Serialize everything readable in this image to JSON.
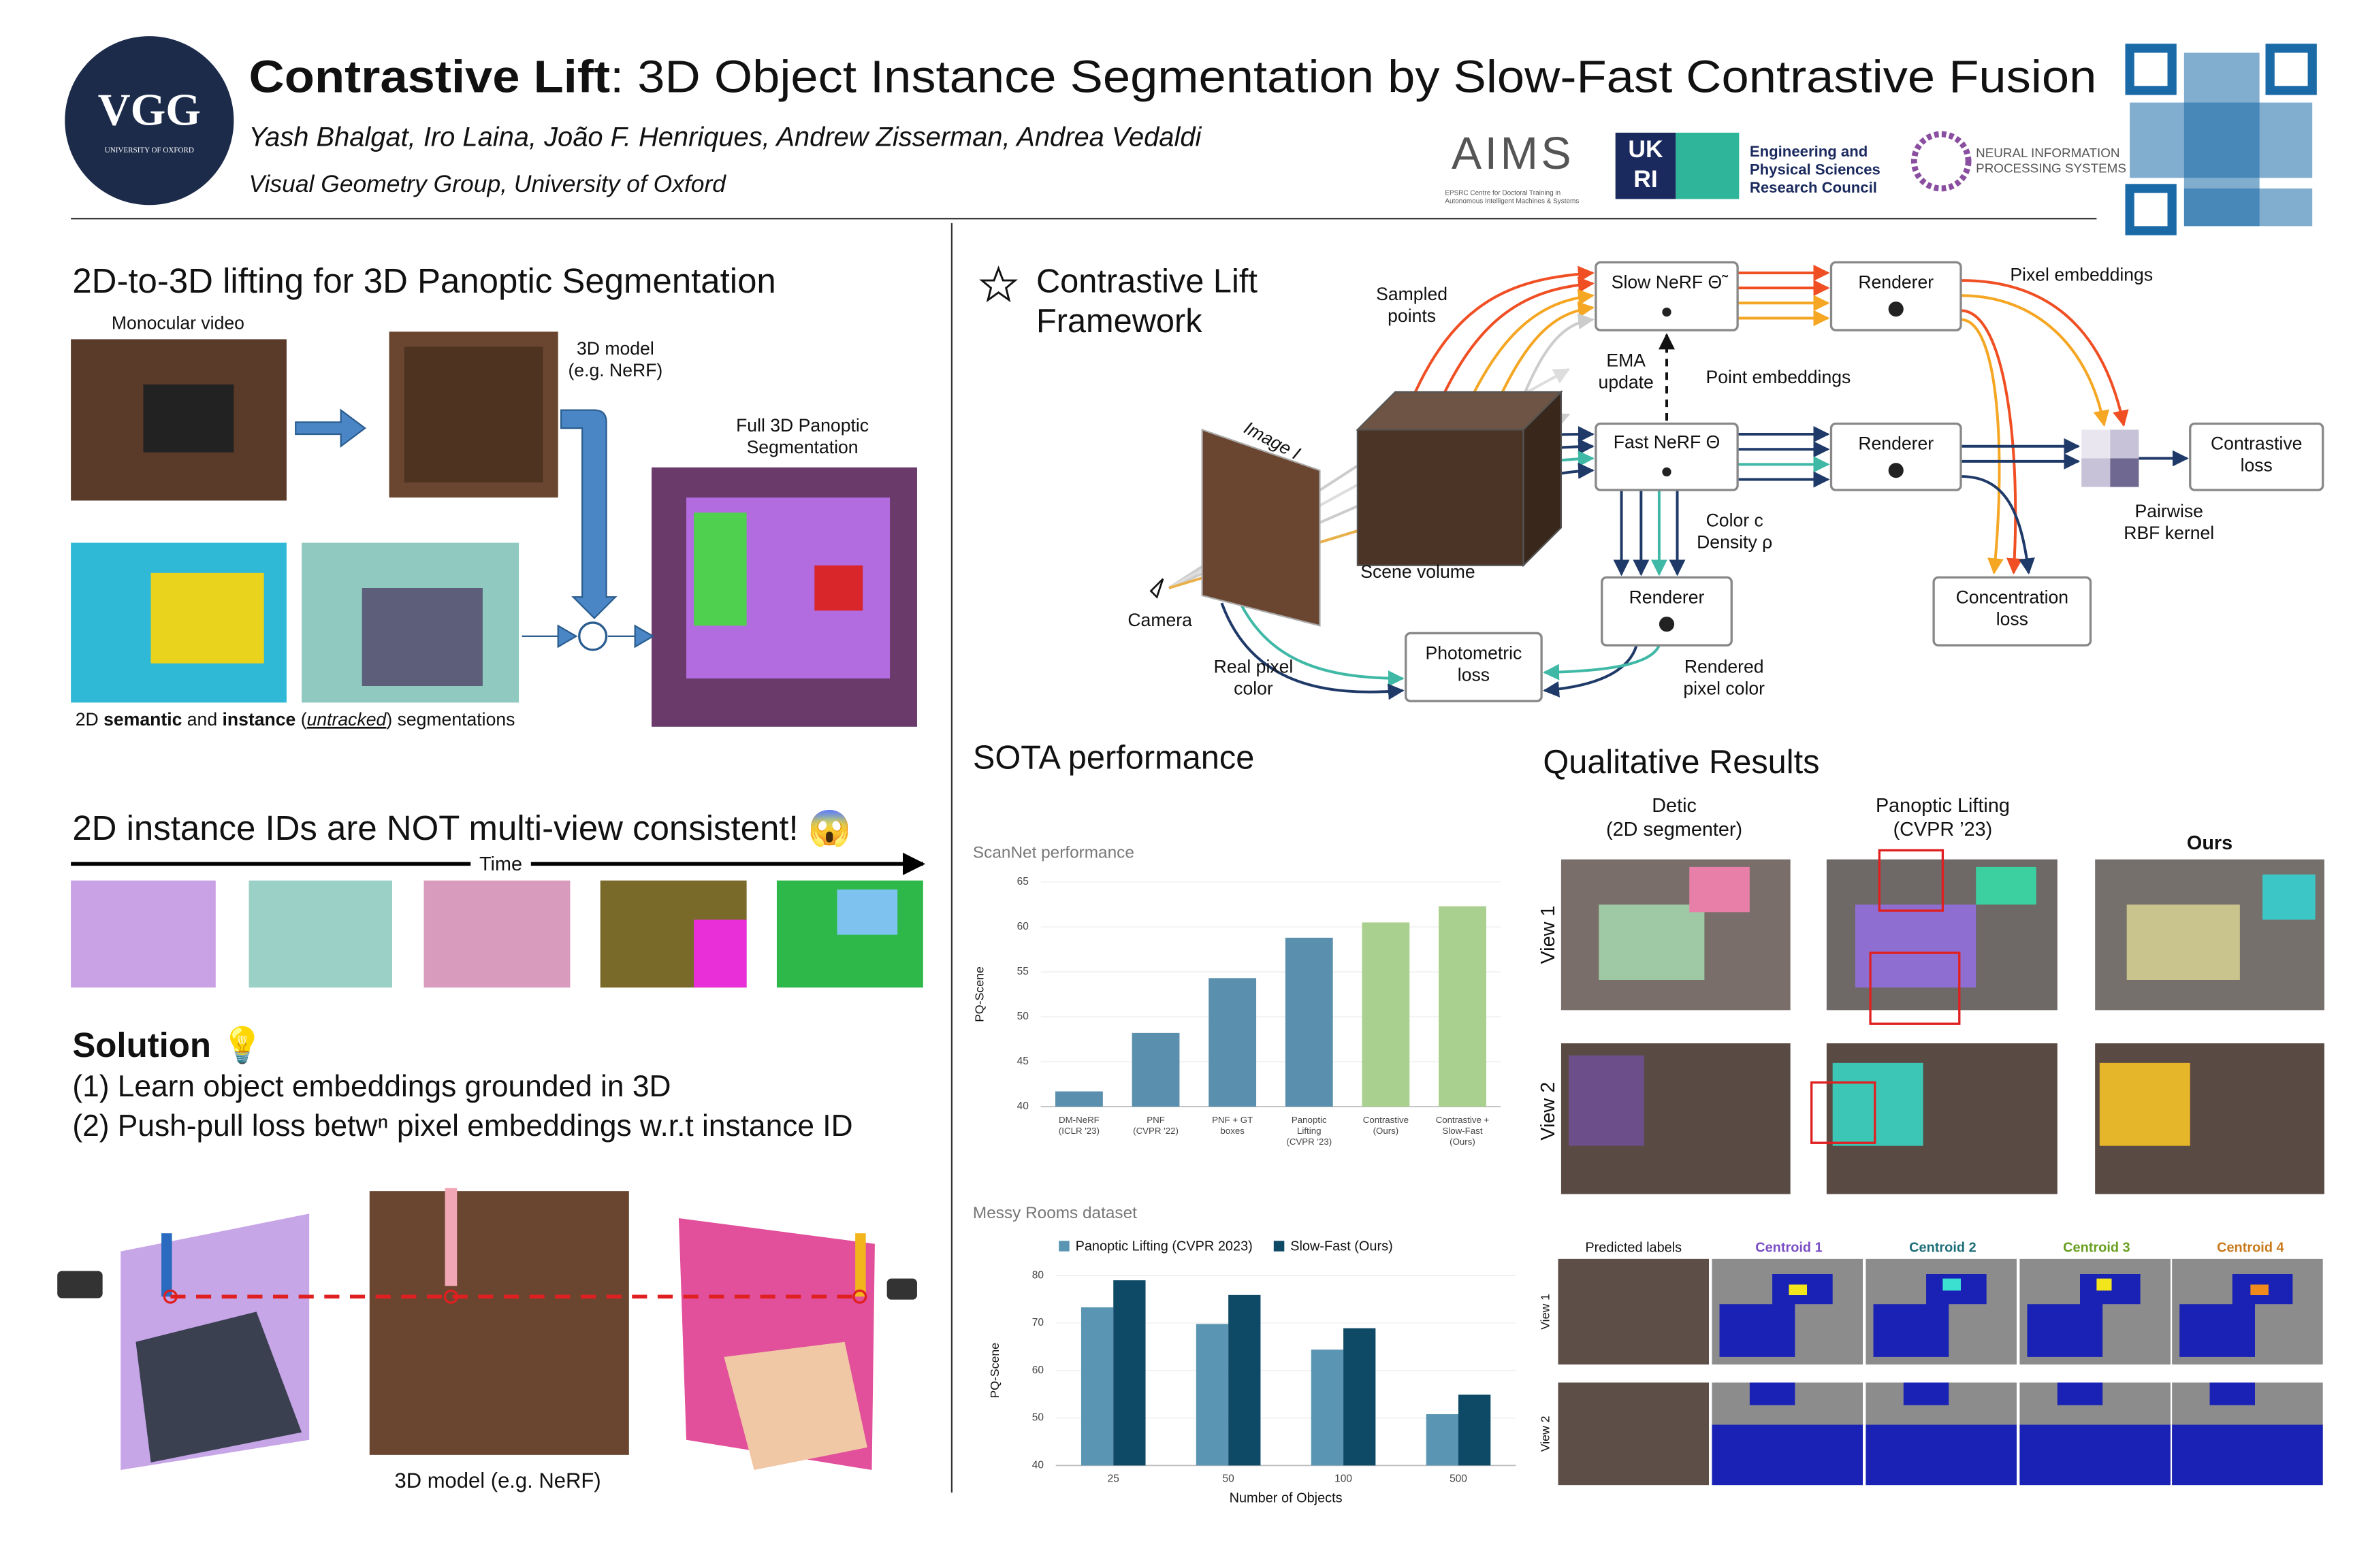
{
  "header": {
    "logo_main": "VGG",
    "logo_sub": "UNIVERSITY OF OXFORD",
    "title_bold": "Contrastive Lift",
    "title_rest": ": 3D Object Instance Segmentation by Slow-Fast Contrastive Fusion",
    "authors": "Yash Bhalgat, Iro Laina, João F. Henriques, Andrew Zisserman, Andrea Vedaldi",
    "affiliation": "Visual Geometry Group, University of Oxford"
  },
  "sponsors": {
    "aims": "AIMS",
    "aims_sub": "EPSRC Centre for Doctoral Training in\nAutonomous Intelligent Machines & Systems",
    "ukri_top": "UK",
    "ukri_bottom": "RI",
    "epsrc": "Engineering and\nPhysical Sciences\nResearch Council",
    "neurips": "NEURAL INFORMATION\nPROCESSING SYSTEMS"
  },
  "lifting": {
    "heading": "2D-to-3D lifting for 3D Panoptic Segmentation",
    "video_label": "Monocular video",
    "model_label": "3D model\n(e.g. NeRF)",
    "output_label": "Full 3D Panoptic\nSegmentation",
    "caption": [
      "2D ",
      "semantic",
      " and ",
      "instance",
      " (",
      "untracked",
      ") segmentations"
    ]
  },
  "consistency": {
    "heading": "2D instance IDs are NOT multi-view consistent! 😱",
    "time": "Time"
  },
  "solution": {
    "heading": "Solution 💡",
    "points": [
      "(1) Learn object embeddings grounded in 3D",
      "(2) Push-pull loss betwⁿ pixel embeddings w.r.t instance ID"
    ],
    "model_label": "3D model (e.g. NeRF)"
  },
  "framework": {
    "heading": "Contrastive Lift\nFramework",
    "nodes": [
      "Slow NeRF Θ̃",
      "Renderer",
      "Fast NeRF Θ",
      "Renderer",
      "Contrastive\nloss",
      "Renderer",
      "Photometric\nloss",
      "Concentration\nloss"
    ],
    "labels": [
      "Sampled\npoints",
      "EMA\nupdate",
      "Point embeddings",
      "Pixel embeddings",
      "Color c\nDensity ρ",
      "Pairwise\nRBF kernel",
      "Scene volume",
      "Camera",
      "Image I",
      "Real pixel\ncolor",
      "Rendered\npixel color"
    ]
  },
  "sota": {
    "heading": "SOTA performance"
  },
  "qualitative": {
    "heading": "Qualitative Results",
    "columns": [
      "Detic\n(2D segmenter)",
      "Panoptic Lifting\n(CVPR ’23)",
      "Ours"
    ],
    "rows": [
      "View 1",
      "View 2"
    ],
    "centroid_columns": [
      "Predicted labels",
      "Centroid 1",
      "Centroid 2",
      "Centroid 3",
      "Centroid 4"
    ],
    "centroid_rows": [
      "View 1",
      "View 2"
    ]
  },
  "chart_data": [
    {
      "type": "bar",
      "title": "ScanNet performance",
      "categories": [
        "DM-NeRF\n(ICLR '23)",
        "PNF\n(CVPR '22)",
        "PNF + GT\nboxes",
        "Panoptic\nLifting\n(CVPR '23)",
        "Contrastive\n(Ours)",
        "Contrastive +\nSlow-Fast\n(Ours)"
      ],
      "values": [
        41.7,
        48.2,
        54.3,
        58.8,
        60.5,
        62.3
      ],
      "colors": [
        "#5b8fae",
        "#5b8fae",
        "#5b8fae",
        "#5b8fae",
        "#a9d08e",
        "#a9d08e"
      ],
      "ylabel": "PQ-Scene",
      "ylim": [
        40,
        65
      ],
      "yticks": [
        40,
        45,
        50,
        55,
        60,
        65
      ],
      "grid": true
    },
    {
      "type": "grouped_bar",
      "title": "Messy Rooms dataset",
      "categories": [
        "25",
        "50",
        "100",
        "500"
      ],
      "series": [
        {
          "name": "Panoptic Lifting (CVPR 2023)",
          "color": "#5a96b4",
          "values": [
            73.3,
            69.8,
            64.4,
            50.8
          ]
        },
        {
          "name": "Slow-Fast (Ours)",
          "color": "#0e4a66",
          "values": [
            79.0,
            75.9,
            68.9,
            54.9
          ]
        }
      ],
      "xlabel": "Number of Objects",
      "ylabel": "PQ-Scene",
      "ylim": [
        40,
        80
      ],
      "yticks": [
        40,
        50,
        60,
        70,
        80
      ],
      "grid": true,
      "legend": "top"
    }
  ]
}
